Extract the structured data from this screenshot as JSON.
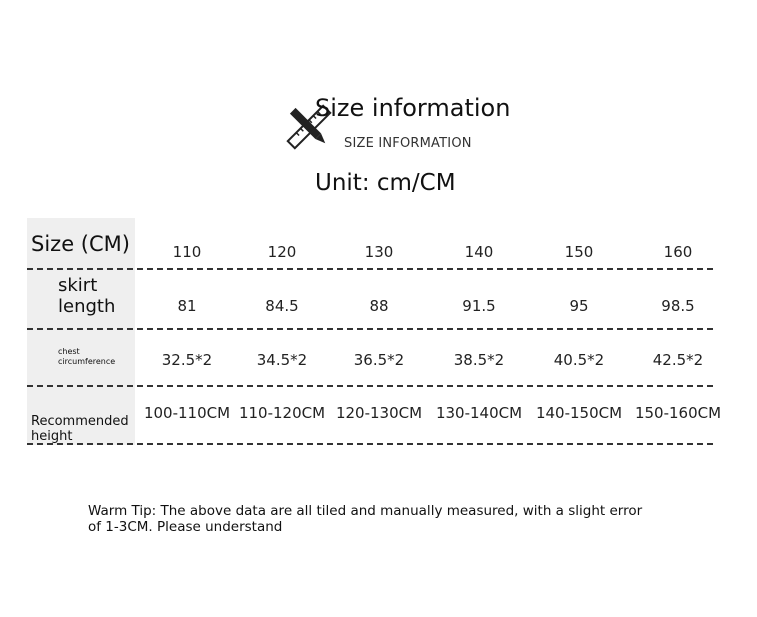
{
  "header": {
    "title": "Size information",
    "subtitle": "SIZE INFORMATION",
    "unit": "Unit: cm/CM",
    "icon": "ruler-pencil-icon"
  },
  "table": {
    "row_labels": [
      "Size (CM)",
      "skirt length",
      "chest circumference",
      "Recommended height"
    ],
    "sizes": [
      "110",
      "120",
      "130",
      "140",
      "150",
      "160"
    ],
    "skirt_length": [
      "81",
      "84.5",
      "88",
      "91.5",
      "95",
      "98.5"
    ],
    "chest": [
      "32.5*2",
      "34.5*2",
      "36.5*2",
      "38.5*2",
      "40.5*2",
      "42.5*2"
    ],
    "height": [
      "100-110CM",
      "110-120CM",
      "120-130CM",
      "130-140CM",
      "140-150CM",
      "150-160CM"
    ]
  },
  "tip": "Warm Tip: The above data are all tiled and manually measured, with a slight error of 1-3CM. Please understand"
}
